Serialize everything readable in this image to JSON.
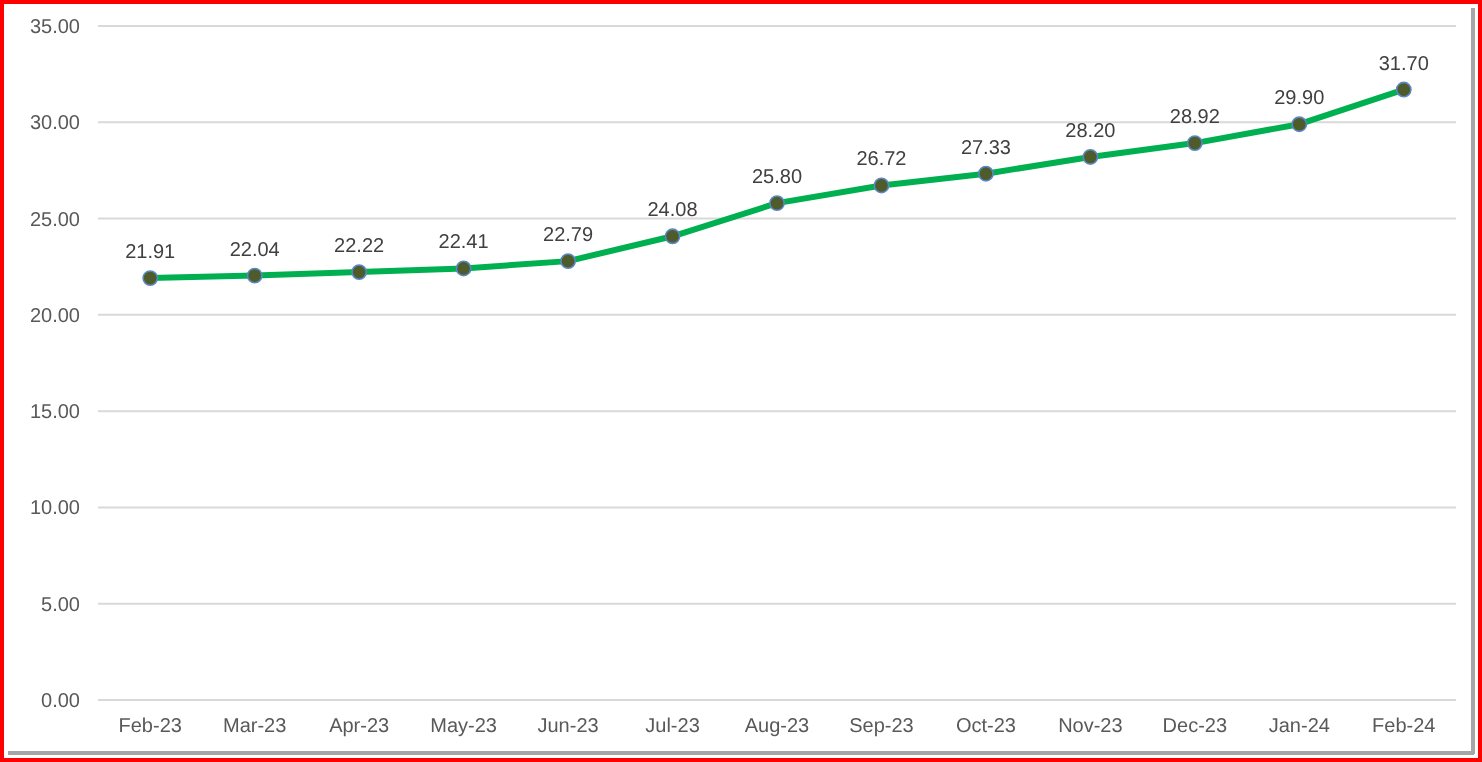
{
  "chart_data": {
    "type": "line",
    "categories": [
      "Feb-23",
      "Mar-23",
      "Apr-23",
      "May-23",
      "Jun-23",
      "Jul-23",
      "Aug-23",
      "Sep-23",
      "Oct-23",
      "Nov-23",
      "Dec-23",
      "Jan-24",
      "Feb-24"
    ],
    "series": [
      {
        "color": "#00b050",
        "values": [
          21.91,
          22.04,
          22.22,
          22.41,
          22.79,
          24.08,
          25.8,
          26.72,
          27.33,
          28.2,
          28.92,
          29.9,
          31.7
        ],
        "value_labels": [
          "21.91",
          "22.04",
          "22.22",
          "22.41",
          "22.79",
          "24.08",
          "25.80",
          "26.72",
          "27.33",
          "28.20",
          "28.92",
          "29.90",
          "31.70"
        ]
      }
    ],
    "ylim": [
      0,
      35
    ],
    "yticks": [
      {
        "value": 0,
        "label": "0.00"
      },
      {
        "value": 5,
        "label": "5.00"
      },
      {
        "value": 10,
        "label": "10.00"
      },
      {
        "value": 15,
        "label": "15.00"
      },
      {
        "value": 20,
        "label": "20.00"
      },
      {
        "value": 25,
        "label": "25.00"
      },
      {
        "value": 30,
        "label": "30.00"
      },
      {
        "value": 35,
        "label": "35.00"
      }
    ],
    "grid": "y",
    "marker": "circle",
    "line_style": "solid"
  }
}
